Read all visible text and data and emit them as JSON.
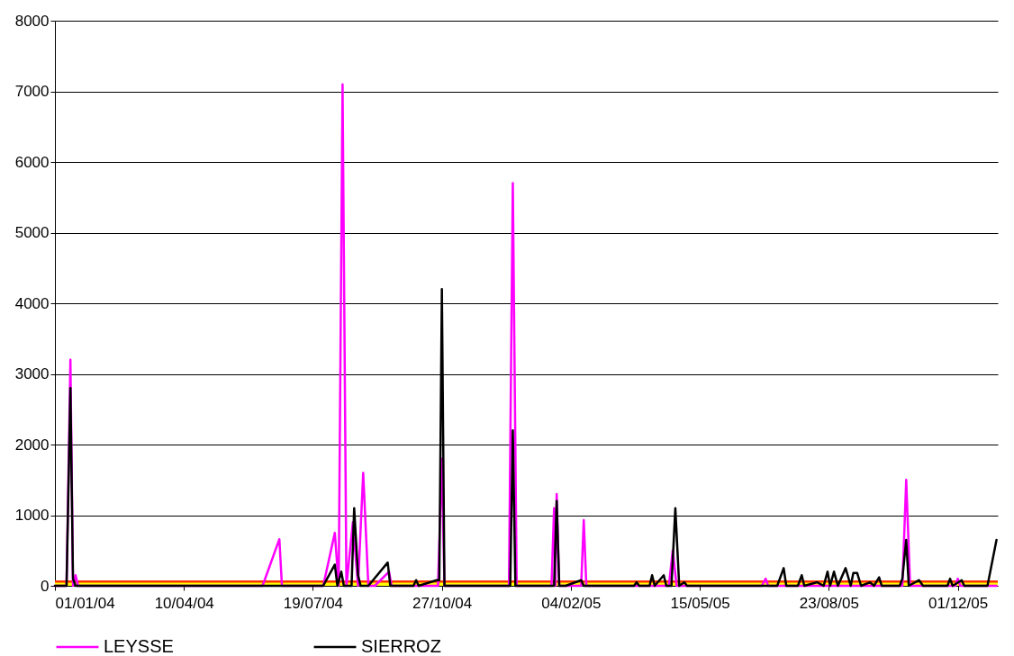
{
  "chart_data": {
    "type": "line",
    "xlim": [
      "2004-01-01",
      "2006-01-01"
    ],
    "xticks": [
      {
        "value": "2004-01-01",
        "label": "01/01/04"
      },
      {
        "value": "2004-04-10",
        "label": "10/04/04"
      },
      {
        "value": "2004-07-19",
        "label": "19/07/04"
      },
      {
        "value": "2004-10-27",
        "label": "27/10/04"
      },
      {
        "value": "2005-02-04",
        "label": "04/02/05"
      },
      {
        "value": "2005-05-15",
        "label": "15/05/05"
      },
      {
        "value": "2005-08-23",
        "label": "23/08/05"
      },
      {
        "value": "2005-12-01",
        "label": "01/12/05"
      }
    ],
    "ylim": [
      0,
      8000
    ],
    "yticks": [
      0,
      1000,
      2000,
      3000,
      4000,
      5000,
      6000,
      7000,
      8000
    ],
    "grid": "y",
    "legend": "bottom",
    "marker": "none",
    "line_style": "solid",
    "bands": [
      {
        "axis": "y",
        "from": 0,
        "to": 60,
        "color": "#ffff00"
      }
    ],
    "ref_lines": [
      {
        "axis": "y",
        "value": 60,
        "color": "#ff3300"
      }
    ],
    "series": [
      {
        "name": "LEYSSE",
        "color": "#ff00ff",
        "x": [
          "2004-01-01",
          "2004-01-10",
          "2004-01-13",
          "2004-01-15",
          "2004-01-17",
          "2004-01-19",
          "2004-06-10",
          "2004-06-23",
          "2004-06-25",
          "2004-07-27",
          "2004-08-05",
          "2004-08-08",
          "2004-08-11",
          "2004-08-14",
          "2004-08-19",
          "2004-08-23",
          "2004-08-27",
          "2004-08-31",
          "2004-09-05",
          "2004-09-16",
          "2004-09-18",
          "2004-10-24",
          "2004-10-27",
          "2004-10-29",
          "2004-12-18",
          "2004-12-21",
          "2004-12-24",
          "2005-01-20",
          "2005-01-22",
          "2005-01-23",
          "2005-01-24",
          "2005-01-26",
          "2005-02-12",
          "2005-02-14",
          "2005-02-16",
          "2005-04-21",
          "2005-04-24",
          "2005-04-27",
          "2005-07-02",
          "2005-07-05",
          "2005-07-07",
          "2005-10-19",
          "2005-10-22",
          "2005-10-25",
          "2005-11-29",
          "2005-12-01",
          "2005-12-03",
          "2005-12-31"
        ],
        "values": [
          0,
          0,
          3200,
          0,
          150,
          0,
          0,
          660,
          0,
          0,
          750,
          0,
          7100,
          0,
          900,
          0,
          1600,
          0,
          0,
          200,
          0,
          0,
          1800,
          0,
          0,
          5700,
          0,
          0,
          1100,
          0,
          1300,
          0,
          0,
          930,
          0,
          0,
          500,
          0,
          0,
          100,
          0,
          0,
          1500,
          0,
          0,
          100,
          0,
          0
        ]
      },
      {
        "name": "SIERROZ",
        "color": "#000000",
        "x": [
          "2004-01-01",
          "2004-01-10",
          "2004-01-13",
          "2004-01-15",
          "2004-01-17",
          "2004-07-27",
          "2004-08-05",
          "2004-08-07",
          "2004-08-10",
          "2004-08-12",
          "2004-08-18",
          "2004-08-20",
          "2004-08-23",
          "2004-08-25",
          "2004-08-31",
          "2004-09-15",
          "2004-09-17",
          "2004-10-05",
          "2004-10-07",
          "2004-10-09",
          "2004-10-23",
          "2004-10-25",
          "2004-10-27",
          "2004-10-29",
          "2004-12-19",
          "2004-12-21",
          "2004-12-23",
          "2005-01-22",
          "2005-01-24",
          "2005-01-26",
          "2005-01-31",
          "2005-02-12",
          "2005-02-14",
          "2005-03-25",
          "2005-03-27",
          "2005-03-29",
          "2005-04-06",
          "2005-04-08",
          "2005-04-10",
          "2005-04-17",
          "2005-04-19",
          "2005-04-23",
          "2005-04-26",
          "2005-04-29",
          "2005-05-03",
          "2005-05-05",
          "2005-07-14",
          "2005-07-19",
          "2005-07-21",
          "2005-07-30",
          "2005-08-02",
          "2005-08-04",
          "2005-08-14",
          "2005-08-19",
          "2005-08-22",
          "2005-08-24",
          "2005-08-27",
          "2005-08-30",
          "2005-09-05",
          "2005-09-09",
          "2005-09-11",
          "2005-09-14",
          "2005-09-17",
          "2005-09-24",
          "2005-09-27",
          "2005-10-01",
          "2005-10-03",
          "2005-10-17",
          "2005-10-19",
          "2005-10-22",
          "2005-10-24",
          "2005-11-01",
          "2005-11-04",
          "2005-11-23",
          "2005-11-25",
          "2005-11-27",
          "2005-12-04",
          "2005-12-06",
          "2005-12-24",
          "2005-12-31"
        ],
        "values": [
          0,
          0,
          2800,
          100,
          0,
          0,
          300,
          0,
          200,
          0,
          0,
          1100,
          150,
          0,
          0,
          330,
          0,
          0,
          80,
          0,
          80,
          80,
          4200,
          0,
          0,
          2200,
          0,
          0,
          1200,
          0,
          0,
          80,
          0,
          0,
          50,
          0,
          0,
          150,
          0,
          150,
          0,
          0,
          1100,
          0,
          50,
          0,
          0,
          250,
          0,
          0,
          150,
          0,
          50,
          0,
          200,
          0,
          200,
          0,
          250,
          0,
          180,
          180,
          0,
          50,
          0,
          120,
          0,
          0,
          100,
          650,
          0,
          80,
          0,
          0,
          100,
          0,
          80,
          0,
          0,
          650
        ]
      }
    ]
  }
}
